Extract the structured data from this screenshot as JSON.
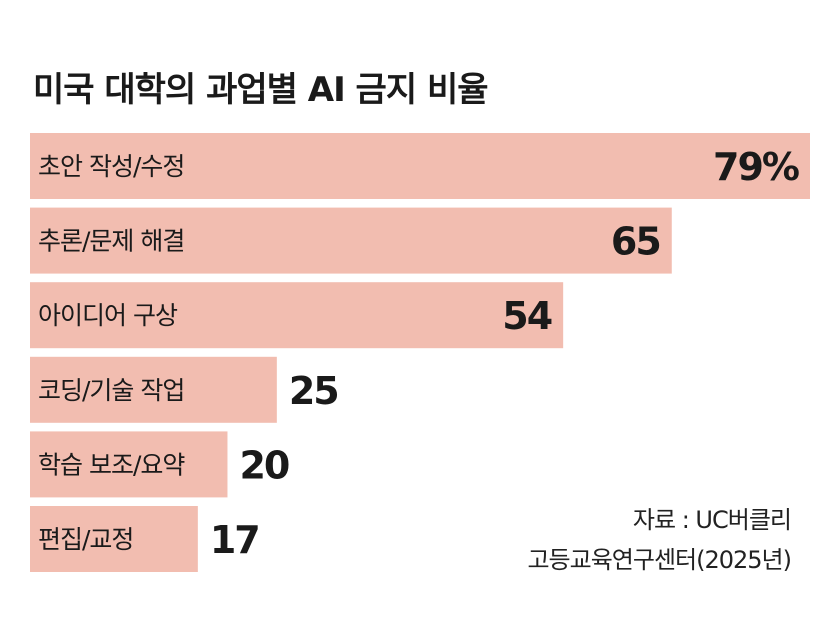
{
  "title": "미국 대학의 과업별 AI 금지 비율",
  "chart_data": {
    "type": "bar",
    "orientation": "horizontal",
    "categories": [
      "초안 작성/수정",
      "추론/문제 해결",
      "아이디어 구상",
      "코딩/기술 작업",
      "학습 보조/요약",
      "편집/교정"
    ],
    "values": [
      79,
      65,
      54,
      25,
      20,
      17
    ],
    "value_labels": [
      "79%",
      "65",
      "54",
      "25",
      "20",
      "17"
    ],
    "unit": "%",
    "xlim": [
      0,
      79
    ],
    "grid": false,
    "legend": "none",
    "bar_color": "#f2bdb0",
    "text_color": "#1a1a1a"
  },
  "source": {
    "line1": "자료 : UC버클리",
    "line2": "고등교육연구센터(2025년)"
  }
}
